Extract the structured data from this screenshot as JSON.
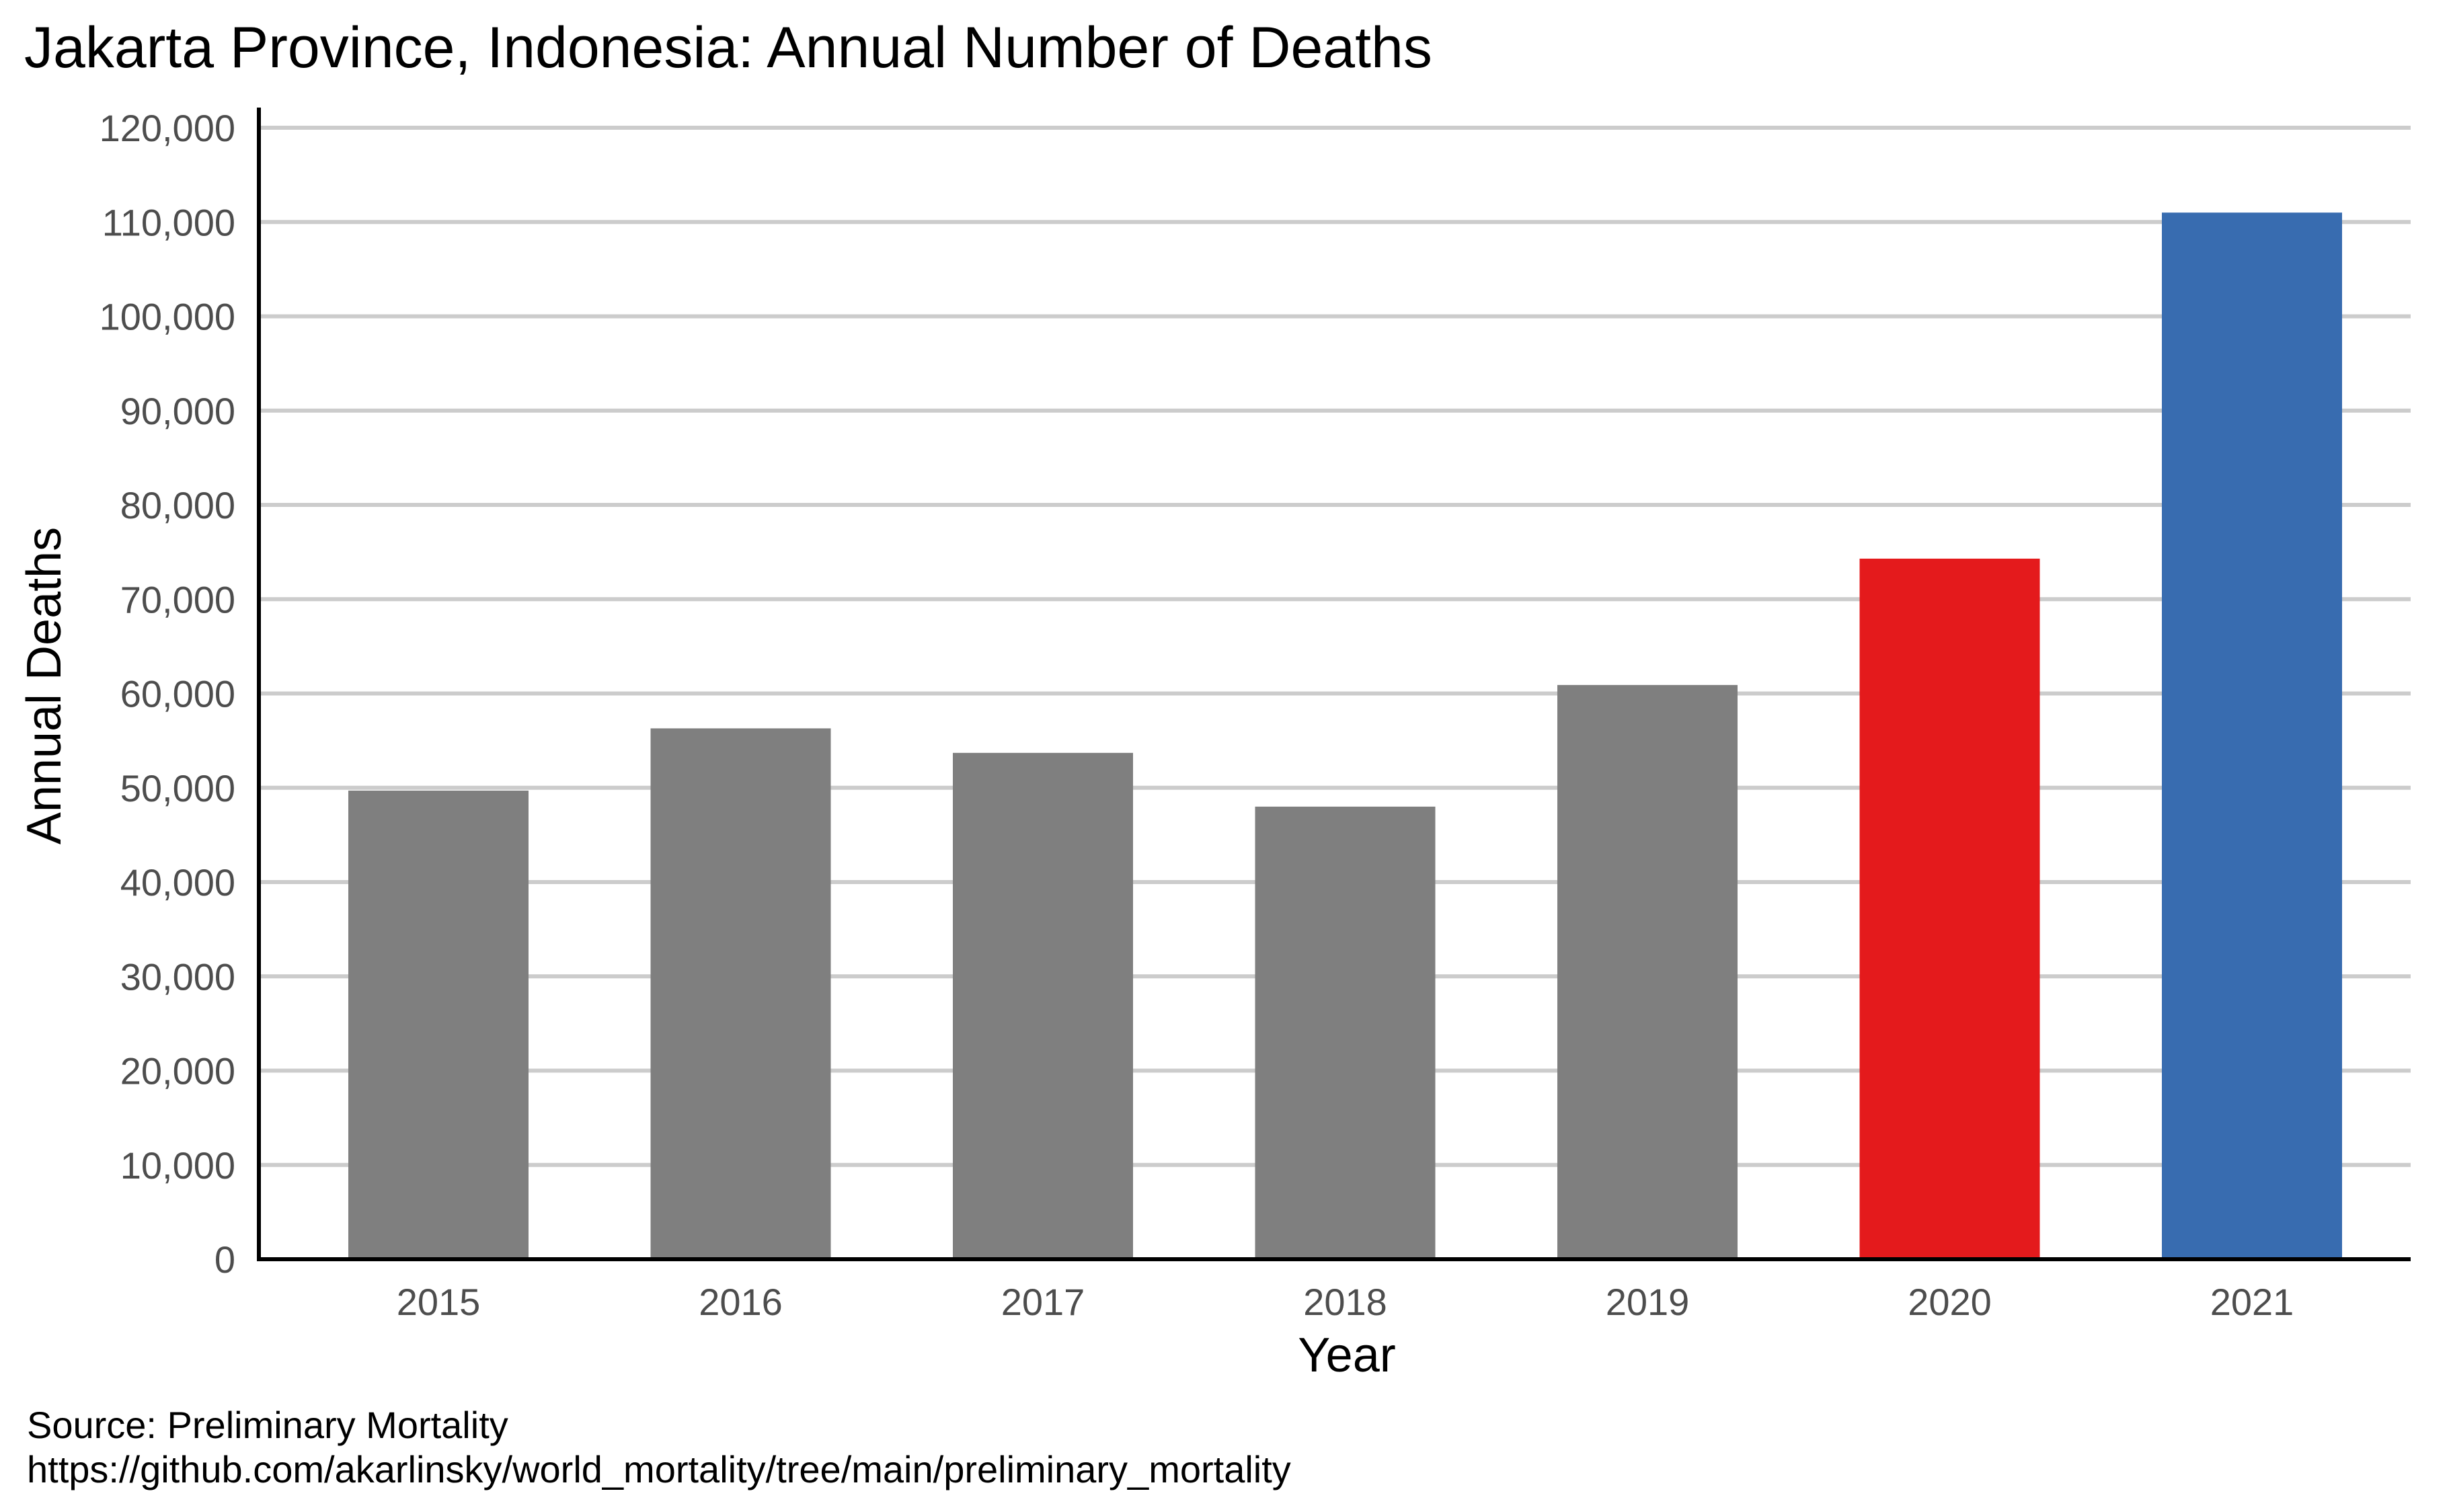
{
  "chart_data": {
    "type": "bar",
    "title": "Jakarta Province, Indonesia: Annual Number of Deaths",
    "xlabel": "Year",
    "ylabel": "Annual Deaths",
    "categories": [
      "2015",
      "2016",
      "2017",
      "2018",
      "2019",
      "2020",
      "2021"
    ],
    "values": [
      49700,
      56300,
      53700,
      48000,
      60900,
      74300,
      111000
    ],
    "bar_colors": [
      "#7f7f7f",
      "#7f7f7f",
      "#7f7f7f",
      "#7f7f7f",
      "#7f7f7f",
      "#e41a1c",
      "#386cb0"
    ],
    "ylim": [
      0,
      120000
    ],
    "yticks": [
      0,
      10000,
      20000,
      30000,
      40000,
      50000,
      60000,
      70000,
      80000,
      90000,
      100000,
      110000,
      120000
    ],
    "ytick_labels": [
      "0",
      "10,000",
      "20,000",
      "30,000",
      "40,000",
      "50,000",
      "60,000",
      "70,000",
      "80,000",
      "90,000",
      "100,000",
      "110,000",
      "120,000"
    ],
    "grid": true,
    "legend": "none"
  },
  "caption": {
    "line1": "Source: Preliminary Mortality",
    "line2": "https://github.com/akarlinsky/world_mortality/tree/main/preliminary_mortality"
  }
}
